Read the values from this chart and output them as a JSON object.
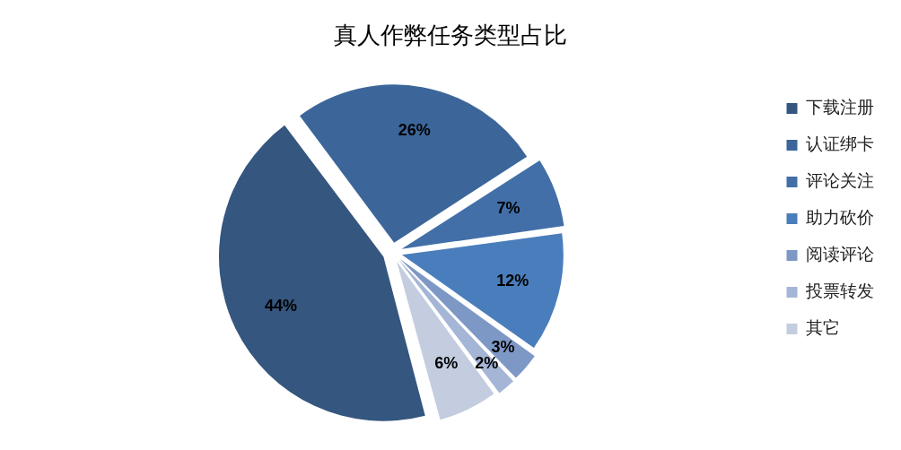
{
  "chart_data": {
    "type": "pie",
    "title": "真人作弊任务类型占比",
    "categories": [
      "下载注册",
      "认证绑卡",
      "评论关注",
      "助力砍价",
      "阅读评论",
      "投票转发",
      "其它"
    ],
    "values": [
      44,
      26,
      7,
      12,
      3,
      2,
      6
    ],
    "colors": [
      "#34567f",
      "#3c6699",
      "#426fa8",
      "#4a7dbb",
      "#7e98c6",
      "#a5b5d6",
      "#c4cde0"
    ],
    "value_labels": [
      "44%",
      "26%",
      "7%",
      "12%",
      "3%",
      "2%",
      "6%"
    ],
    "legend": "right"
  }
}
